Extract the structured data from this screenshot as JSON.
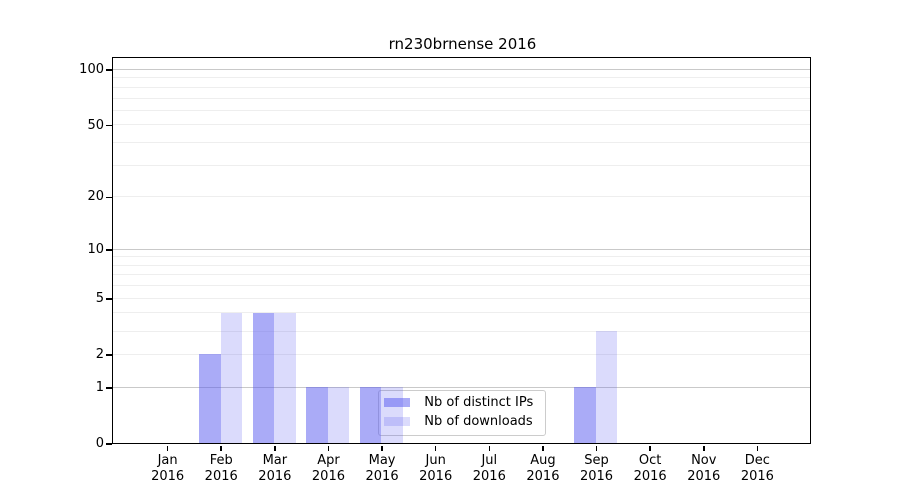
{
  "chart_data": {
    "type": "bar",
    "title": "rn230brnense 2016",
    "categories": [
      "Jan",
      "Feb",
      "Mar",
      "Apr",
      "May",
      "Jun",
      "Jul",
      "Aug",
      "Sep",
      "Oct",
      "Nov",
      "Dec"
    ],
    "category_year": "2016",
    "series": [
      {
        "name": "Nb of distinct IPs",
        "color": "rgba(85,87,240,0.5)",
        "values": [
          0,
          2,
          4,
          1,
          1,
          0,
          0,
          0,
          1,
          0,
          0,
          0
        ]
      },
      {
        "name": "Nb of downloads",
        "color": "rgba(85,87,240,0.21)",
        "values": [
          0,
          4,
          4,
          1,
          1,
          0,
          0,
          0,
          3,
          0,
          0,
          0
        ]
      }
    ],
    "yscale": "log1p",
    "ylim": [
      0,
      115
    ],
    "yticks": [
      0,
      1,
      2,
      5,
      10,
      20,
      50,
      100
    ],
    "grid": {
      "major_values": [
        1,
        10,
        100
      ],
      "minor_values": [
        2,
        3,
        4,
        5,
        6,
        7,
        8,
        9,
        20,
        30,
        40,
        50,
        60,
        70,
        80,
        90
      ]
    },
    "legend": {
      "position": "lower center",
      "background": "rgba(255,255,255,0.8)",
      "border": "#cccccc"
    },
    "colors": {
      "major_grid": "#c9c9c9",
      "minor_grid": "#eeeeee",
      "spine": "#000000",
      "text": "#000000",
      "background": "#ffffff"
    }
  }
}
